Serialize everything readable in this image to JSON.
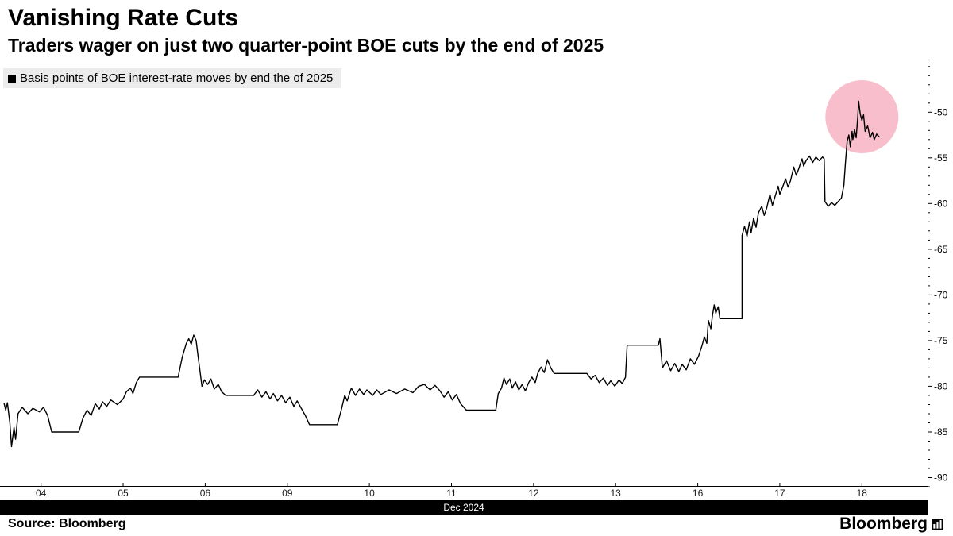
{
  "header": {
    "title": "Vanishing Rate Cuts",
    "subtitle": "Traders wager on just two quarter-point BOE cuts by the end of 2025"
  },
  "legend": {
    "label": "Basis points of BOE interest-rate moves by end the of 2025"
  },
  "footer": {
    "source": "Source: Bloomberg",
    "brand": "Bloomberg"
  },
  "colors": {
    "line": "#000000",
    "highlight_pink": "#ef6f8e",
    "legend_bg": "#ececec",
    "axis_band_bg": "#000000",
    "band_text": "#ffffff"
  },
  "chart_data": {
    "type": "line",
    "title": "Vanishing Rate Cuts",
    "subtitle": "Traders wager on just two quarter-point BOE cuts by the end of 2025",
    "legend_entries": [
      "Basis points of BOE interest-rate moves by end the of 2025"
    ],
    "x_axis": {
      "label": "Dec 2024",
      "tick_labels": [
        "04",
        "05",
        "06",
        "09",
        "10",
        "11",
        "12",
        "13",
        "16",
        "17",
        "18"
      ],
      "tick_positions": [
        0,
        1,
        2,
        3,
        4,
        5,
        6,
        7,
        8,
        9,
        10
      ],
      "range": [
        -0.5,
        10.8
      ]
    },
    "y_axis": {
      "side": "right",
      "ticks": [
        -50,
        -55,
        -60,
        -65,
        -70,
        -75,
        -80,
        -85,
        -90
      ],
      "range": [
        -91,
        -44.5
      ]
    },
    "annotation_circle": {
      "x": 10.0,
      "y": -50.5,
      "radius_px": 46,
      "color": "#ef6f8e",
      "opacity": 0.45
    },
    "series": [
      {
        "name": "Basis points of BOE interest-rate moves by end the of 2025",
        "color": "#000000",
        "points": [
          [
            -0.45,
            -81.9
          ],
          [
            -0.43,
            -82.6
          ],
          [
            -0.41,
            -81.8
          ],
          [
            -0.38,
            -84.0
          ],
          [
            -0.36,
            -86.6
          ],
          [
            -0.33,
            -84.5
          ],
          [
            -0.31,
            -85.8
          ],
          [
            -0.28,
            -83.0
          ],
          [
            -0.23,
            -82.3
          ],
          [
            -0.16,
            -83.0
          ],
          [
            -0.1,
            -82.4
          ],
          [
            -0.02,
            -82.8
          ],
          [
            0.03,
            -82.3
          ],
          [
            0.08,
            -83.2
          ],
          [
            0.13,
            -85.0
          ],
          [
            0.46,
            -85.0
          ],
          [
            0.51,
            -83.5
          ],
          [
            0.56,
            -82.6
          ],
          [
            0.61,
            -83.2
          ],
          [
            0.66,
            -81.9
          ],
          [
            0.71,
            -82.5
          ],
          [
            0.75,
            -81.7
          ],
          [
            0.8,
            -82.2
          ],
          [
            0.85,
            -81.5
          ],
          [
            0.93,
            -82.0
          ],
          [
            1.0,
            -81.4
          ],
          [
            1.04,
            -80.6
          ],
          [
            1.09,
            -80.2
          ],
          [
            1.12,
            -80.8
          ],
          [
            1.16,
            -79.6
          ],
          [
            1.2,
            -79.0
          ],
          [
            1.67,
            -79.0
          ],
          [
            1.72,
            -76.8
          ],
          [
            1.77,
            -75.3
          ],
          [
            1.8,
            -74.8
          ],
          [
            1.83,
            -75.4
          ],
          [
            1.86,
            -74.4
          ],
          [
            1.89,
            -75.0
          ],
          [
            1.91,
            -76.5
          ],
          [
            1.96,
            -80.0
          ],
          [
            1.99,
            -79.3
          ],
          [
            2.03,
            -79.8
          ],
          [
            2.07,
            -79.2
          ],
          [
            2.11,
            -80.3
          ],
          [
            2.16,
            -79.8
          ],
          [
            2.2,
            -80.6
          ],
          [
            2.25,
            -81.0
          ],
          [
            2.59,
            -81.0
          ],
          [
            2.64,
            -80.4
          ],
          [
            2.69,
            -81.2
          ],
          [
            2.74,
            -80.6
          ],
          [
            2.79,
            -81.4
          ],
          [
            2.83,
            -80.8
          ],
          [
            2.88,
            -81.6
          ],
          [
            2.93,
            -81.0
          ],
          [
            2.98,
            -81.8
          ],
          [
            3.03,
            -81.2
          ],
          [
            3.08,
            -82.2
          ],
          [
            3.12,
            -81.6
          ],
          [
            3.17,
            -82.4
          ],
          [
            3.22,
            -83.2
          ],
          [
            3.27,
            -84.2
          ],
          [
            3.61,
            -84.2
          ],
          [
            3.66,
            -82.5
          ],
          [
            3.7,
            -81.0
          ],
          [
            3.73,
            -81.6
          ],
          [
            3.78,
            -80.2
          ],
          [
            3.83,
            -81.0
          ],
          [
            3.88,
            -80.3
          ],
          [
            3.93,
            -80.9
          ],
          [
            3.97,
            -80.4
          ],
          [
            4.04,
            -81.0
          ],
          [
            4.09,
            -80.4
          ],
          [
            4.14,
            -80.9
          ],
          [
            4.24,
            -80.4
          ],
          [
            4.33,
            -80.8
          ],
          [
            4.43,
            -80.3
          ],
          [
            4.53,
            -80.7
          ],
          [
            4.6,
            -80.0
          ],
          [
            4.67,
            -79.8
          ],
          [
            4.74,
            -80.4
          ],
          [
            4.8,
            -79.9
          ],
          [
            4.86,
            -80.5
          ],
          [
            4.91,
            -81.2
          ],
          [
            4.96,
            -80.6
          ],
          [
            5.01,
            -81.5
          ],
          [
            5.06,
            -80.9
          ],
          [
            5.11,
            -81.9
          ],
          [
            5.18,
            -82.6
          ],
          [
            5.54,
            -82.6
          ],
          [
            5.57,
            -80.8
          ],
          [
            5.61,
            -80.2
          ],
          [
            5.64,
            -79.1
          ],
          [
            5.67,
            -79.8
          ],
          [
            5.71,
            -79.2
          ],
          [
            5.74,
            -80.2
          ],
          [
            5.78,
            -79.5
          ],
          [
            5.82,
            -80.4
          ],
          [
            5.86,
            -79.8
          ],
          [
            5.9,
            -80.5
          ],
          [
            5.94,
            -79.6
          ],
          [
            5.98,
            -79.0
          ],
          [
            6.02,
            -79.6
          ],
          [
            6.05,
            -78.6
          ],
          [
            6.09,
            -77.9
          ],
          [
            6.13,
            -78.5
          ],
          [
            6.17,
            -77.1
          ],
          [
            6.21,
            -78.0
          ],
          [
            6.25,
            -78.6
          ],
          [
            6.65,
            -78.6
          ],
          [
            6.7,
            -79.2
          ],
          [
            6.75,
            -78.8
          ],
          [
            6.8,
            -79.6
          ],
          [
            6.85,
            -79.1
          ],
          [
            6.9,
            -79.9
          ],
          [
            6.94,
            -79.4
          ],
          [
            6.99,
            -80.0
          ],
          [
            7.04,
            -79.3
          ],
          [
            7.08,
            -79.7
          ],
          [
            7.12,
            -79.0
          ],
          [
            7.14,
            -75.5
          ],
          [
            7.52,
            -75.5
          ],
          [
            7.54,
            -74.8
          ],
          [
            7.57,
            -78.0
          ],
          [
            7.62,
            -77.2
          ],
          [
            7.67,
            -78.3
          ],
          [
            7.72,
            -77.5
          ],
          [
            7.77,
            -78.4
          ],
          [
            7.81,
            -77.6
          ],
          [
            7.86,
            -78.2
          ],
          [
            7.91,
            -77.0
          ],
          [
            7.96,
            -77.6
          ],
          [
            8.01,
            -76.7
          ],
          [
            8.05,
            -75.6
          ],
          [
            8.08,
            -74.6
          ],
          [
            8.11,
            -75.3
          ],
          [
            8.13,
            -72.8
          ],
          [
            8.16,
            -73.7
          ],
          [
            8.18,
            -72.2
          ],
          [
            8.2,
            -71.1
          ],
          [
            8.22,
            -72.0
          ],
          [
            8.25,
            -71.3
          ],
          [
            8.27,
            -72.6
          ],
          [
            8.54,
            -72.6
          ],
          [
            8.54,
            -63.5
          ],
          [
            8.57,
            -62.5
          ],
          [
            8.6,
            -63.6
          ],
          [
            8.63,
            -62.0
          ],
          [
            8.65,
            -63.2
          ],
          [
            8.68,
            -61.6
          ],
          [
            8.71,
            -62.6
          ],
          [
            8.74,
            -61.0
          ],
          [
            8.78,
            -60.3
          ],
          [
            8.81,
            -61.3
          ],
          [
            8.84,
            -60.5
          ],
          [
            8.88,
            -59.0
          ],
          [
            8.91,
            -60.2
          ],
          [
            8.94,
            -59.3
          ],
          [
            8.98,
            -58.1
          ],
          [
            9.0,
            -59.0
          ],
          [
            9.03,
            -58.3
          ],
          [
            9.07,
            -57.3
          ],
          [
            9.1,
            -58.2
          ],
          [
            9.13,
            -57.5
          ],
          [
            9.17,
            -56.0
          ],
          [
            9.2,
            -56.9
          ],
          [
            9.23,
            -56.2
          ],
          [
            9.27,
            -55.1
          ],
          [
            9.29,
            -55.9
          ],
          [
            9.32,
            -55.3
          ],
          [
            9.36,
            -54.8
          ],
          [
            9.4,
            -55.5
          ],
          [
            9.44,
            -54.9
          ],
          [
            9.48,
            -55.3
          ],
          [
            9.52,
            -54.9
          ],
          [
            9.54,
            -55.1
          ],
          [
            9.55,
            -59.8
          ],
          [
            9.59,
            -60.3
          ],
          [
            9.63,
            -59.9
          ],
          [
            9.67,
            -60.2
          ],
          [
            9.71,
            -59.8
          ],
          [
            9.75,
            -59.4
          ],
          [
            9.78,
            -58.0
          ],
          [
            9.8,
            -55.5
          ],
          [
            9.82,
            -53.2
          ],
          [
            9.84,
            -52.5
          ],
          [
            9.86,
            -53.8
          ],
          [
            9.88,
            -52.1
          ],
          [
            9.89,
            -53.0
          ],
          [
            9.91,
            -51.9
          ],
          [
            9.93,
            -52.8
          ],
          [
            9.95,
            -50.5
          ],
          [
            9.96,
            -48.8
          ],
          [
            9.98,
            -50.2
          ],
          [
            10.0,
            -50.9
          ],
          [
            10.02,
            -50.3
          ],
          [
            10.04,
            -52.1
          ],
          [
            10.07,
            -51.5
          ],
          [
            10.1,
            -52.8
          ],
          [
            10.13,
            -52.2
          ],
          [
            10.15,
            -53.0
          ],
          [
            10.18,
            -52.4
          ],
          [
            10.21,
            -52.7
          ]
        ]
      }
    ]
  }
}
